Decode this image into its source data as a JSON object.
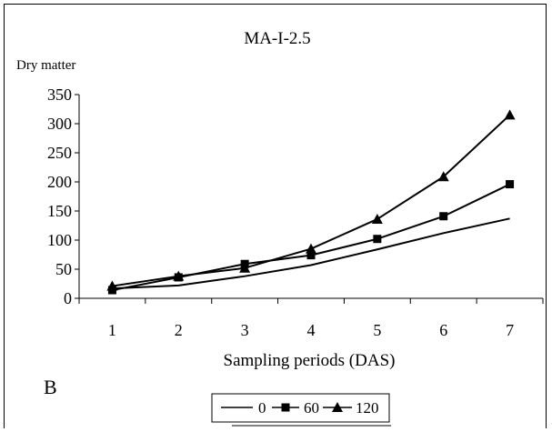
{
  "chart_data": {
    "type": "line",
    "title": "MA-I-2.5",
    "ylabel": "Dry matter",
    "xlabel": "Sampling periods (DAS)",
    "panel_label": "B",
    "categories": [
      "1",
      "2",
      "3",
      "4",
      "5",
      "6",
      "7"
    ],
    "ylim": [
      0,
      350
    ],
    "yticks": [
      "0",
      "50",
      "100",
      "150",
      "200",
      "250",
      "300",
      "350"
    ],
    "series": [
      {
        "name": "0",
        "marker": "none",
        "values": [
          17,
          22,
          38,
          57,
          84,
          112,
          137
        ]
      },
      {
        "name": "60",
        "marker": "square",
        "values": [
          14,
          36,
          59,
          74,
          102,
          141,
          196
        ]
      },
      {
        "name": "120",
        "marker": "triangle",
        "values": [
          21,
          38,
          52,
          85,
          136,
          209,
          315
        ]
      }
    ],
    "legend_position": "bottom",
    "grid": false
  }
}
